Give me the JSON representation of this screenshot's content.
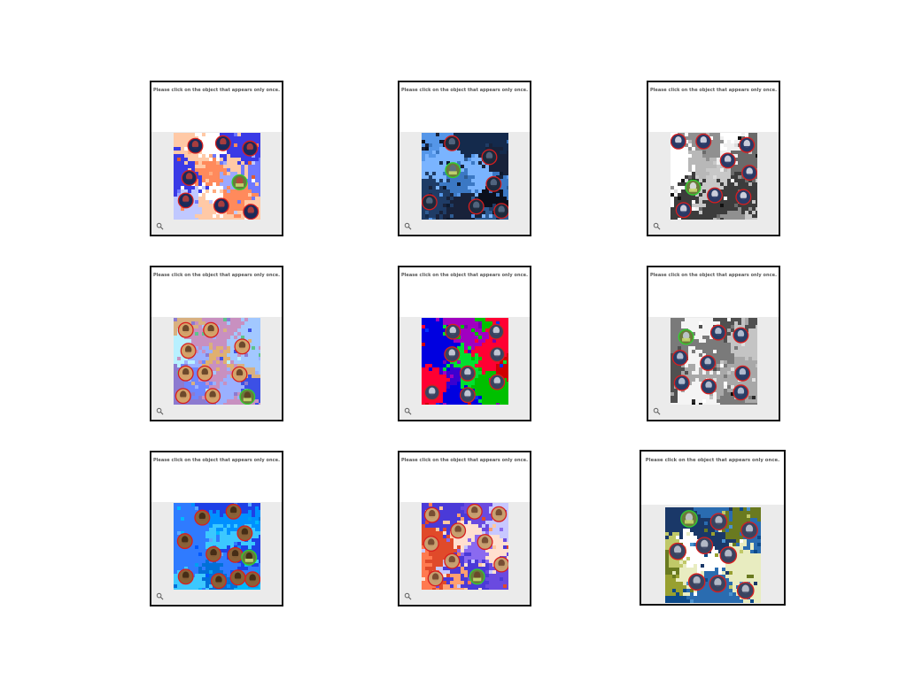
{
  "prompt_text": "Please click on the object that appears only once.",
  "icons": {
    "zoom": "magnifier-icon",
    "object": "object-token-icon"
  },
  "colors": {
    "wrong_ring": "#d81e1e",
    "correct_ring": "#2fd12f",
    "footer": "#ebebeb",
    "frame": "#111111"
  },
  "panels": [
    {
      "id": "p1",
      "palette": [
        "#ff8a5c",
        "#ffab7f",
        "#ffc9a6",
        "#e05a30",
        "#6e78ff",
        "#9ca8ff",
        "#3a3ae6",
        "#ffffff",
        "#c0c8ff"
      ],
      "token": {
        "fill": "#1a2a5a",
        "accent": "#c0413a"
      },
      "tokens": [
        {
          "c": 0.25,
          "r": 0.15,
          "ok": false
        },
        {
          "c": 0.57,
          "r": 0.12,
          "ok": false
        },
        {
          "c": 0.88,
          "r": 0.18,
          "ok": false
        },
        {
          "c": 0.18,
          "r": 0.52,
          "ok": false
        },
        {
          "c": 0.76,
          "r": 0.57,
          "ok": true
        },
        {
          "c": 0.14,
          "r": 0.78,
          "ok": false
        },
        {
          "c": 0.55,
          "r": 0.84,
          "ok": false
        },
        {
          "c": 0.89,
          "r": 0.91,
          "ok": false
        }
      ]
    },
    {
      "id": "p2",
      "palette": [
        "#0c1a30",
        "#142a4c",
        "#1f3c66",
        "#2e5c94",
        "#3b78c4",
        "#5596e8",
        "#7ab4ff",
        "#18223a",
        "#0a0f1c"
      ],
      "token": {
        "fill": "#1e2a3c",
        "accent": "#5a6e88"
      },
      "tokens": [
        {
          "c": 0.35,
          "r": 0.12,
          "ok": false
        },
        {
          "c": 0.78,
          "r": 0.28,
          "ok": false
        },
        {
          "c": 0.36,
          "r": 0.43,
          "ok": true
        },
        {
          "c": 0.83,
          "r": 0.59,
          "ok": false
        },
        {
          "c": 0.09,
          "r": 0.8,
          "ok": false
        },
        {
          "c": 0.63,
          "r": 0.85,
          "ok": false
        },
        {
          "c": 0.92,
          "r": 0.9,
          "ok": false
        }
      ]
    },
    {
      "id": "p3",
      "palette": [
        "#ffffff",
        "#dcdcdc",
        "#b8b8b8",
        "#909090",
        "#6a6a6a",
        "#3c3c3c",
        "#111111",
        "#f0f0f0",
        "#c8c8c8"
      ],
      "token": {
        "fill": "#2a3a66",
        "accent": "#e8e8f0"
      },
      "tokens": [
        {
          "c": 0.09,
          "r": 0.1,
          "ok": false
        },
        {
          "c": 0.38,
          "r": 0.1,
          "ok": false
        },
        {
          "c": 0.88,
          "r": 0.14,
          "ok": false
        },
        {
          "c": 0.66,
          "r": 0.32,
          "ok": false
        },
        {
          "c": 0.91,
          "r": 0.46,
          "ok": false
        },
        {
          "c": 0.26,
          "r": 0.63,
          "ok": true
        },
        {
          "c": 0.51,
          "r": 0.72,
          "ok": false
        },
        {
          "c": 0.84,
          "r": 0.74,
          "ok": false
        },
        {
          "c": 0.15,
          "r": 0.89,
          "ok": false
        }
      ]
    },
    {
      "id": "p4",
      "palette": [
        "#6e86ff",
        "#3c50e6",
        "#9ab0ff",
        "#5cc48c",
        "#c890c0",
        "#e0b070",
        "#a2c8ff",
        "#b8f0ff",
        "#8c7ad0",
        "#d8b080"
      ],
      "token": {
        "fill": "#d4a36a",
        "accent": "#5a3a20"
      },
      "tokens": [
        {
          "c": 0.14,
          "r": 0.14,
          "ok": false
        },
        {
          "c": 0.43,
          "r": 0.14,
          "ok": false
        },
        {
          "c": 0.17,
          "r": 0.38,
          "ok": false
        },
        {
          "c": 0.79,
          "r": 0.33,
          "ok": false
        },
        {
          "c": 0.14,
          "r": 0.64,
          "ok": false
        },
        {
          "c": 0.36,
          "r": 0.64,
          "ok": false
        },
        {
          "c": 0.76,
          "r": 0.65,
          "ok": false
        },
        {
          "c": 0.11,
          "r": 0.9,
          "ok": false
        },
        {
          "c": 0.45,
          "r": 0.9,
          "ok": false
        },
        {
          "c": 0.85,
          "r": 0.91,
          "ok": true
        }
      ]
    },
    {
      "id": "p5",
      "palette": [
        "#0000e0",
        "#0030ff",
        "#d00000",
        "#ff0033",
        "#00c000",
        "#00e030",
        "#7a00b0",
        "#3a00d0",
        "#a000c0"
      ],
      "token": {
        "fill": "#3a4460",
        "accent": "#d8dce8"
      },
      "tokens": [
        {
          "c": 0.36,
          "r": 0.16,
          "ok": false
        },
        {
          "c": 0.86,
          "r": 0.16,
          "ok": false
        },
        {
          "c": 0.35,
          "r": 0.42,
          "ok": false
        },
        {
          "c": 0.87,
          "r": 0.42,
          "ok": false
        },
        {
          "c": 0.53,
          "r": 0.64,
          "ok": false
        },
        {
          "c": 0.87,
          "r": 0.74,
          "ok": false
        },
        {
          "c": 0.12,
          "r": 0.86,
          "ok": false
        },
        {
          "c": 0.53,
          "r": 0.89,
          "ok": false
        }
      ]
    },
    {
      "id": "p6",
      "palette": [
        "#ffffff",
        "#e0e0e0",
        "#a8a8a8",
        "#7a7a7a",
        "#505050",
        "#2c2c2c",
        "#0c0c0c",
        "#c4c4c4",
        "#f4f4f4"
      ],
      "token": {
        "fill": "#2a3e66",
        "accent": "#c8d0e0"
      },
      "tokens": [
        {
          "c": 0.18,
          "r": 0.22,
          "ok": true
        },
        {
          "c": 0.55,
          "r": 0.17,
          "ok": false
        },
        {
          "c": 0.81,
          "r": 0.2,
          "ok": false
        },
        {
          "c": 0.11,
          "r": 0.46,
          "ok": false
        },
        {
          "c": 0.43,
          "r": 0.52,
          "ok": false
        },
        {
          "c": 0.83,
          "r": 0.64,
          "ok": false
        },
        {
          "c": 0.13,
          "r": 0.75,
          "ok": false
        },
        {
          "c": 0.44,
          "r": 0.79,
          "ok": false
        },
        {
          "c": 0.81,
          "r": 0.86,
          "ok": false
        }
      ]
    },
    {
      "id": "p7",
      "palette": [
        "#0058ff",
        "#0090ff",
        "#00b8ff",
        "#2f7bff",
        "#1e40e6",
        "#3cc8ff",
        "#0070d8",
        "#5aa8ff",
        "#00a0f0"
      ],
      "token": {
        "fill": "#8a6238",
        "accent": "#3a2410"
      },
      "tokens": [
        {
          "c": 0.33,
          "r": 0.17,
          "ok": false
        },
        {
          "c": 0.69,
          "r": 0.1,
          "ok": false
        },
        {
          "c": 0.13,
          "r": 0.44,
          "ok": false
        },
        {
          "c": 0.82,
          "r": 0.35,
          "ok": false
        },
        {
          "c": 0.46,
          "r": 0.59,
          "ok": false
        },
        {
          "c": 0.71,
          "r": 0.6,
          "ok": false
        },
        {
          "c": 0.87,
          "r": 0.63,
          "ok": true
        },
        {
          "c": 0.14,
          "r": 0.85,
          "ok": false
        },
        {
          "c": 0.52,
          "r": 0.9,
          "ok": false
        },
        {
          "c": 0.74,
          "r": 0.86,
          "ok": false
        },
        {
          "c": 0.91,
          "r": 0.88,
          "ok": false
        }
      ]
    },
    {
      "id": "p8",
      "palette": [
        "#ff7a50",
        "#ffa070",
        "#ffc8a0",
        "#e04a2a",
        "#8a6af0",
        "#6a4ae0",
        "#c8c8ff",
        "#4a3ad8",
        "#ffe0d0"
      ],
      "token": {
        "fill": "#c8a070",
        "accent": "#6a4028"
      },
      "tokens": [
        {
          "c": 0.12,
          "r": 0.14,
          "ok": false
        },
        {
          "c": 0.61,
          "r": 0.1,
          "ok": false
        },
        {
          "c": 0.89,
          "r": 0.13,
          "ok": false
        },
        {
          "c": 0.42,
          "r": 0.32,
          "ok": false
        },
        {
          "c": 0.11,
          "r": 0.47,
          "ok": false
        },
        {
          "c": 0.73,
          "r": 0.45,
          "ok": false
        },
        {
          "c": 0.35,
          "r": 0.67,
          "ok": false
        },
        {
          "c": 0.92,
          "r": 0.71,
          "ok": false
        },
        {
          "c": 0.16,
          "r": 0.87,
          "ok": false
        },
        {
          "c": 0.64,
          "r": 0.85,
          "ok": true
        }
      ]
    },
    {
      "id": "p9",
      "palette": [
        "#6a7a20",
        "#98a030",
        "#c0c868",
        "#e8ecc0",
        "#0c4a8a",
        "#2a6cb0",
        "#4a92d0",
        "#ffffff",
        "#1a3868"
      ],
      "token": {
        "fill": "#3a4460",
        "accent": "#c8ccd8"
      },
      "tokens": [
        {
          "c": 0.25,
          "r": 0.12,
          "ok": true
        },
        {
          "c": 0.56,
          "r": 0.15,
          "ok": false
        },
        {
          "c": 0.88,
          "r": 0.24,
          "ok": false
        },
        {
          "c": 0.13,
          "r": 0.46,
          "ok": false
        },
        {
          "c": 0.41,
          "r": 0.4,
          "ok": false
        },
        {
          "c": 0.66,
          "r": 0.5,
          "ok": false
        },
        {
          "c": 0.33,
          "r": 0.78,
          "ok": false
        },
        {
          "c": 0.55,
          "r": 0.8,
          "ok": false
        },
        {
          "c": 0.84,
          "r": 0.87,
          "ok": false
        }
      ]
    }
  ]
}
